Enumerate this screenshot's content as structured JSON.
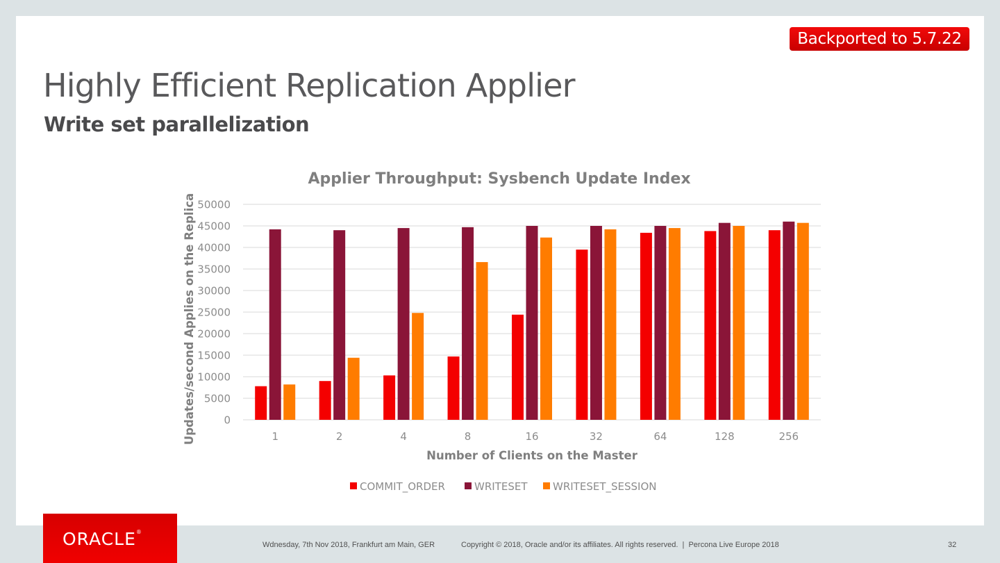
{
  "slide": {
    "badge": "Backported to 5.7.22",
    "title": "Highly Efficient Replication Applier",
    "subtitle": "Write set parallelization",
    "logo": "ORACLE",
    "footer": {
      "date_location": "Wdnesday, 7th Nov 2018, Frankfurt am Main, GER",
      "copyright": "Copyright © 2018, Oracle and/or its affiliates. All rights reserved.  |  Percona Live Europe 2018",
      "page_number": "32"
    },
    "colors": {
      "badge": "#e00000",
      "oracle_red": "#e80000",
      "background": "#dce3e5"
    }
  },
  "chart_data": {
    "type": "bar",
    "title": "Applier Throughput: Sysbench Update Index",
    "xlabel": "Number of Clients on the Master",
    "ylabel": "Updates/second Applies on the Replica",
    "ylim": [
      0,
      50000
    ],
    "yticks": [
      0,
      5000,
      10000,
      15000,
      20000,
      25000,
      30000,
      35000,
      40000,
      45000,
      50000
    ],
    "grid": true,
    "legend_position": "bottom",
    "categories": [
      "1",
      "2",
      "4",
      "8",
      "16",
      "32",
      "64",
      "128",
      "256"
    ],
    "series": [
      {
        "name": "COMMIT_ORDER",
        "color": "#f40000",
        "values": [
          7800,
          9000,
          10300,
          14700,
          24400,
          39500,
          43400,
          43800,
          44000
        ]
      },
      {
        "name": "WRITESET",
        "color": "#8a1538",
        "values": [
          44200,
          44000,
          44500,
          44700,
          45000,
          45000,
          45000,
          45700,
          46000
        ]
      },
      {
        "name": "WRITESET_SESSION",
        "color": "#ff7c00",
        "values": [
          8200,
          14400,
          24800,
          36600,
          42300,
          44200,
          44500,
          45000,
          45700
        ]
      }
    ]
  }
}
